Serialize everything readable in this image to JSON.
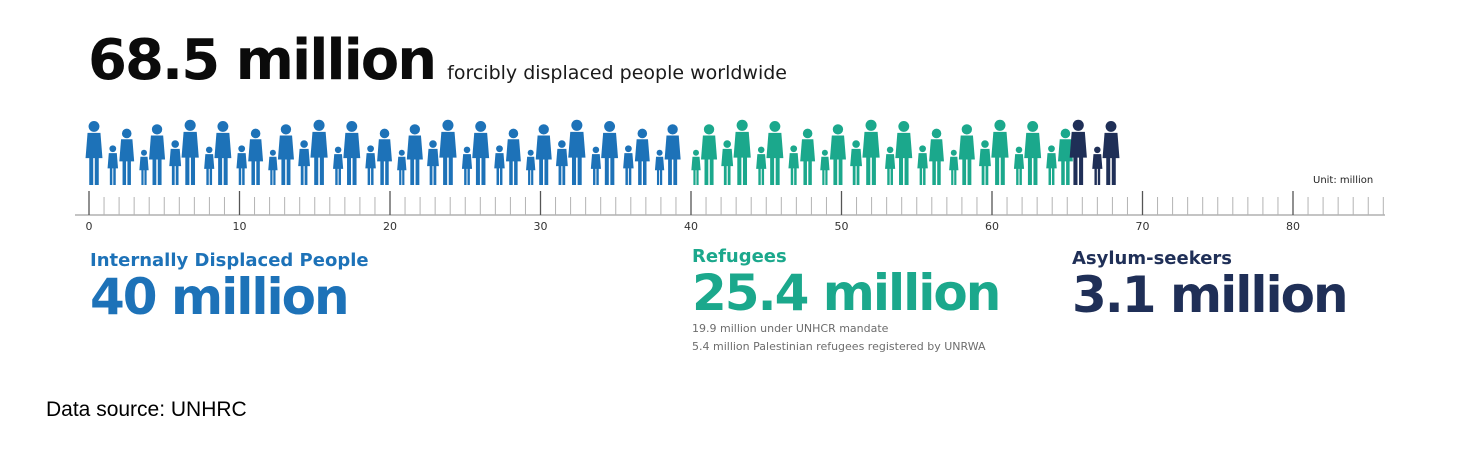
{
  "header": {
    "total": "68.5 million",
    "subtitle": "forcibly displaced people worldwide"
  },
  "unit_label": "Unit: million",
  "categories": {
    "idp": {
      "name": "Internally Displaced People",
      "value": "40 million"
    },
    "refugees": {
      "name": "Refugees",
      "value": "25.4 million",
      "notes": [
        "19.9 million under UNHCR mandate",
        "5.4 million Palestinian refugees registered by UNRWA"
      ]
    },
    "asylum": {
      "name": "Asylum-seekers",
      "value": "3.1 million"
    }
  },
  "source": "Data source: UNHRC",
  "colors": {
    "idp": "#1d72b8",
    "refugees": "#1ba88c",
    "asylum": "#1f2f57",
    "axis": "#8a8a8a",
    "text": "#111111"
  },
  "chart_data": {
    "type": "bar",
    "title": "68.5 million forcibly displaced people worldwide",
    "orientation": "horizontal-stacked",
    "categories": [
      "Internally Displaced People",
      "Refugees",
      "Asylum-seekers"
    ],
    "values": [
      40,
      25.4,
      3.1
    ],
    "total": 68.5,
    "xlim": [
      0,
      86
    ],
    "x_ticks": [
      0,
      10,
      20,
      30,
      40,
      50,
      60,
      70,
      80
    ],
    "xlabel": "",
    "ylabel": "",
    "unit": "million",
    "grid": false
  }
}
